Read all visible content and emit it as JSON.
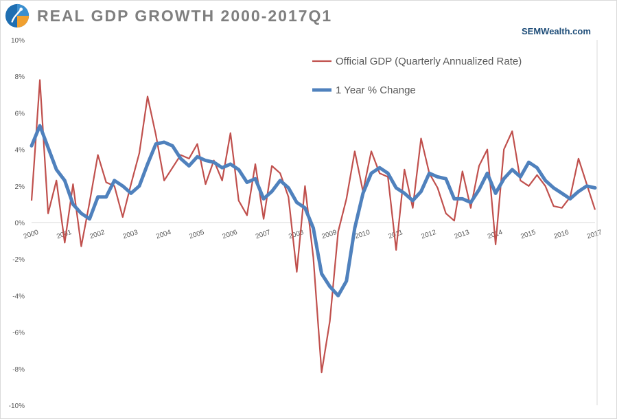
{
  "header": {
    "title": "REAL GDP GROWTH 2000-2017Q1",
    "source": "SEMWealth.com",
    "logo_icon": "sem-logo-icon"
  },
  "colors": {
    "official": "#c0504d",
    "yoy": "#4f81bd",
    "axis": "#d9d9d9",
    "title": "#7f7f7f",
    "source": "#1f4e79"
  },
  "chart_data": {
    "type": "line",
    "ylim": [
      -10,
      10
    ],
    "y_ticks": [
      "10%",
      "8%",
      "6%",
      "4%",
      "2%",
      "0%",
      "-2%",
      "-4%",
      "-6%",
      "-8%",
      "-10%"
    ],
    "y_tick_values": [
      10,
      8,
      6,
      4,
      2,
      0,
      -2,
      -4,
      -6,
      -8,
      -10
    ],
    "x_start_year": 2000,
    "x_tick_labels": [
      "2000",
      "2001",
      "2002",
      "2003",
      "2004",
      "2005",
      "2006",
      "2007",
      "2008",
      "2009",
      "2010",
      "2011",
      "2012",
      "2013",
      "2014",
      "2015",
      "2016",
      "2017"
    ],
    "legend_position": "top-right",
    "grid": false,
    "series": [
      {
        "name": "Official GDP (Quarterly Annualized Rate)",
        "values": [
          1.2,
          7.8,
          0.5,
          2.3,
          -1.1,
          2.1,
          -1.3,
          1.1,
          3.7,
          2.2,
          2.0,
          0.3,
          2.1,
          3.8,
          6.9,
          4.8,
          2.3,
          3.0,
          3.7,
          3.5,
          4.3,
          2.1,
          3.4,
          2.3,
          4.9,
          1.2,
          0.4,
          3.2,
          0.2,
          3.1,
          2.7,
          1.4,
          -2.7,
          2.0,
          -1.9,
          -8.2,
          -5.4,
          -0.5,
          1.3,
          3.9,
          1.7,
          3.9,
          2.7,
          2.5,
          -1.5,
          2.9,
          0.8,
          4.6,
          2.7,
          1.9,
          0.5,
          0.1,
          2.8,
          0.8,
          3.1,
          4.0,
          -1.2,
          4.0,
          5.0,
          2.3,
          2.0,
          2.6,
          2.0,
          0.9,
          0.8,
          1.4,
          3.5,
          2.1,
          0.7
        ]
      },
      {
        "name": "1 Year % Change",
        "values": [
          4.2,
          5.3,
          4.1,
          2.9,
          2.3,
          1.0,
          0.5,
          0.2,
          1.4,
          1.4,
          2.3,
          2.0,
          1.6,
          2.0,
          3.2,
          4.3,
          4.4,
          4.2,
          3.5,
          3.1,
          3.6,
          3.4,
          3.3,
          3.0,
          3.2,
          2.9,
          2.2,
          2.4,
          1.3,
          1.7,
          2.3,
          1.9,
          1.1,
          0.8,
          -0.3,
          -2.8,
          -3.5,
          -4.0,
          -3.2,
          -0.3,
          1.6,
          2.7,
          3.0,
          2.7,
          1.9,
          1.6,
          1.2,
          1.7,
          2.7,
          2.5,
          2.4,
          1.3,
          1.3,
          1.1,
          1.8,
          2.7,
          1.6,
          2.4,
          2.9,
          2.5,
          3.3,
          3.0,
          2.3,
          1.9,
          1.6,
          1.3,
          1.7,
          2.0,
          1.9
        ]
      }
    ]
  }
}
